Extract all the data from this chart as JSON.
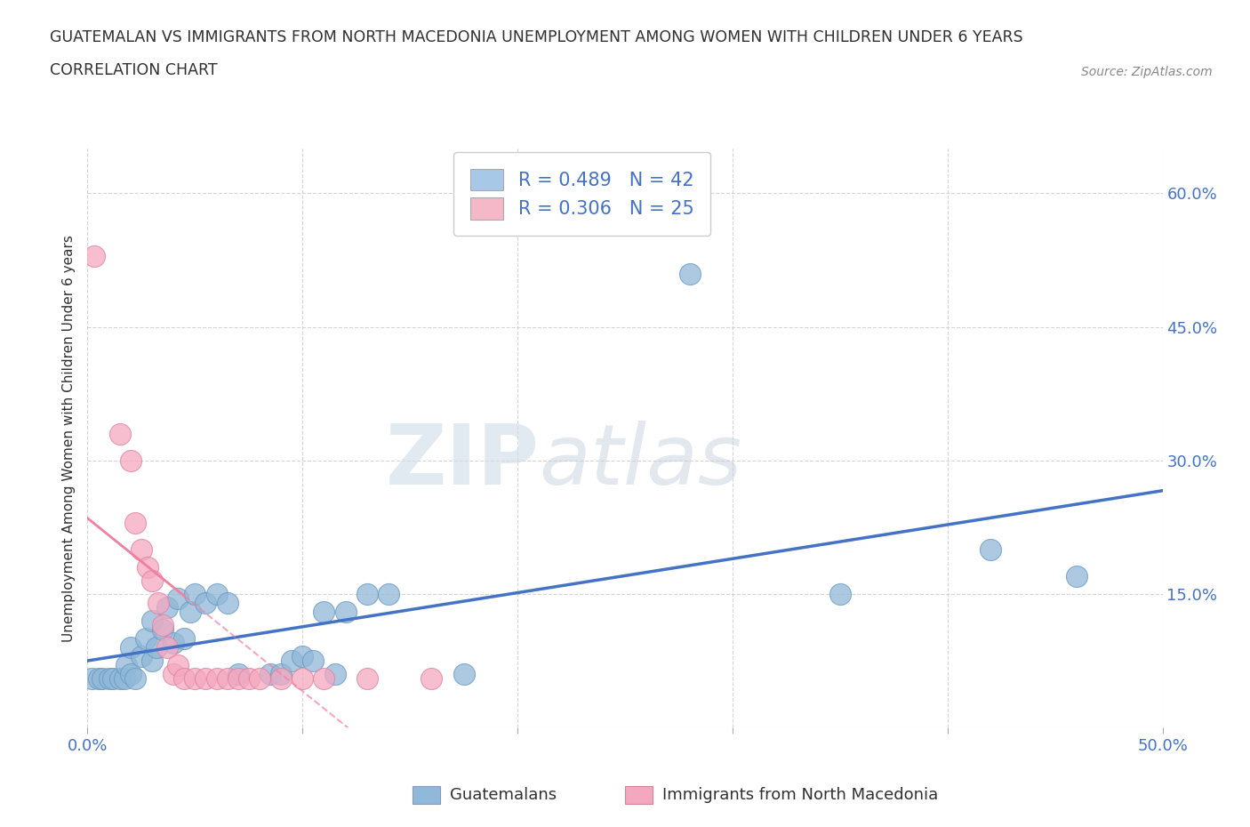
{
  "title_line1": "GUATEMALAN VS IMMIGRANTS FROM NORTH MACEDONIA UNEMPLOYMENT AMONG WOMEN WITH CHILDREN UNDER 6 YEARS",
  "title_line2": "CORRELATION CHART",
  "source": "Source: ZipAtlas.com",
  "ylabel": "Unemployment Among Women with Children Under 6 years",
  "xlim": [
    0.0,
    0.5
  ],
  "ylim": [
    0.0,
    0.65
  ],
  "xticks": [
    0.0,
    0.1,
    0.2,
    0.3,
    0.4,
    0.5
  ],
  "xtick_labels": [
    "0.0%",
    "",
    "",
    "",
    "",
    "50.0%"
  ],
  "ytick_labels": [
    "",
    "15.0%",
    "30.0%",
    "45.0%",
    "60.0%"
  ],
  "yticks": [
    0.0,
    0.15,
    0.3,
    0.45,
    0.6
  ],
  "legend_entries": [
    {
      "label": "R = 0.489   N = 42",
      "color": "#a8c8e8"
    },
    {
      "label": "R = 0.306   N = 25",
      "color": "#f4b8c8"
    }
  ],
  "blue_scatter_color": "#90b8d8",
  "pink_scatter_color": "#f4a8c0",
  "blue_line_color": "#4472c4",
  "pink_line_color": "#f080a0",
  "watermark_zip": "ZIP",
  "watermark_atlas": "atlas",
  "R_blue": 0.489,
  "N_blue": 42,
  "R_pink": 0.306,
  "N_pink": 25,
  "guatemalan_points": [
    [
      0.002,
      0.055
    ],
    [
      0.005,
      0.055
    ],
    [
      0.007,
      0.055
    ],
    [
      0.01,
      0.055
    ],
    [
      0.012,
      0.055
    ],
    [
      0.015,
      0.055
    ],
    [
      0.017,
      0.055
    ],
    [
      0.018,
      0.07
    ],
    [
      0.02,
      0.06
    ],
    [
      0.02,
      0.09
    ],
    [
      0.022,
      0.055
    ],
    [
      0.025,
      0.08
    ],
    [
      0.027,
      0.1
    ],
    [
      0.03,
      0.075
    ],
    [
      0.03,
      0.12
    ],
    [
      0.032,
      0.09
    ],
    [
      0.035,
      0.11
    ],
    [
      0.037,
      0.135
    ],
    [
      0.04,
      0.095
    ],
    [
      0.042,
      0.145
    ],
    [
      0.045,
      0.1
    ],
    [
      0.048,
      0.13
    ],
    [
      0.05,
      0.15
    ],
    [
      0.055,
      0.14
    ],
    [
      0.06,
      0.15
    ],
    [
      0.065,
      0.14
    ],
    [
      0.07,
      0.06
    ],
    [
      0.085,
      0.06
    ],
    [
      0.09,
      0.06
    ],
    [
      0.095,
      0.075
    ],
    [
      0.1,
      0.08
    ],
    [
      0.105,
      0.075
    ],
    [
      0.11,
      0.13
    ],
    [
      0.115,
      0.06
    ],
    [
      0.12,
      0.13
    ],
    [
      0.13,
      0.15
    ],
    [
      0.14,
      0.15
    ],
    [
      0.175,
      0.06
    ],
    [
      0.28,
      0.51
    ],
    [
      0.35,
      0.15
    ],
    [
      0.42,
      0.2
    ],
    [
      0.46,
      0.17
    ]
  ],
  "north_mac_points": [
    [
      0.003,
      0.53
    ],
    [
      0.015,
      0.33
    ],
    [
      0.02,
      0.3
    ],
    [
      0.022,
      0.23
    ],
    [
      0.025,
      0.2
    ],
    [
      0.028,
      0.18
    ],
    [
      0.03,
      0.165
    ],
    [
      0.033,
      0.14
    ],
    [
      0.035,
      0.115
    ],
    [
      0.037,
      0.09
    ],
    [
      0.04,
      0.06
    ],
    [
      0.042,
      0.07
    ],
    [
      0.045,
      0.055
    ],
    [
      0.05,
      0.055
    ],
    [
      0.055,
      0.055
    ],
    [
      0.06,
      0.055
    ],
    [
      0.065,
      0.055
    ],
    [
      0.07,
      0.055
    ],
    [
      0.075,
      0.055
    ],
    [
      0.08,
      0.055
    ],
    [
      0.09,
      0.055
    ],
    [
      0.1,
      0.055
    ],
    [
      0.11,
      0.055
    ],
    [
      0.13,
      0.055
    ],
    [
      0.16,
      0.055
    ]
  ],
  "background_color": "#ffffff",
  "grid_color": "#d0d0d0",
  "title_color": "#303030",
  "axis_label_color": "#303030",
  "tick_label_color": "#4472c4"
}
